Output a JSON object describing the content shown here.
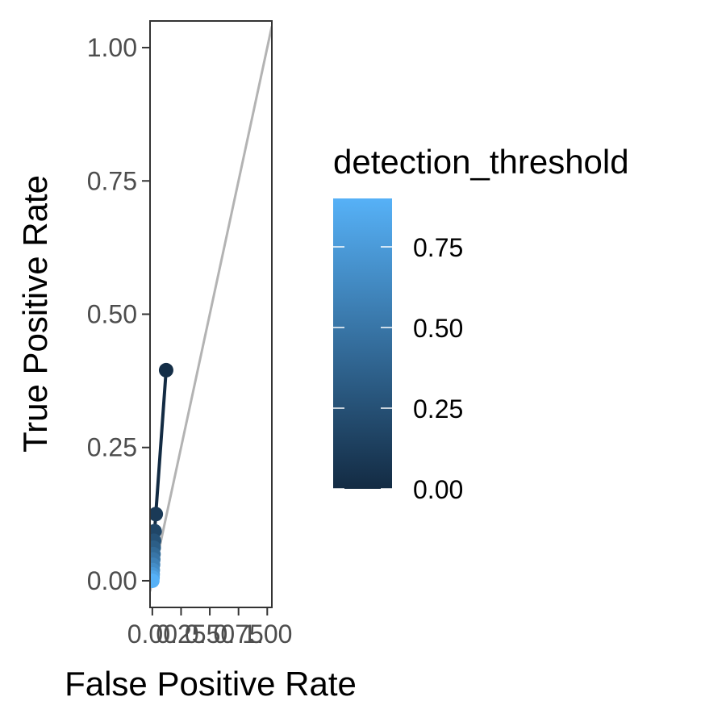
{
  "chart_data": {
    "type": "line",
    "xlabel": "False Positive Rate",
    "ylabel": "True Positive Rate",
    "xlim": [
      -0.02,
      1.04
    ],
    "ylim": [
      -0.05,
      1.05
    ],
    "x_ticks": [
      "0.00",
      "0.25",
      "0.50",
      "0.75",
      "1.00"
    ],
    "y_ticks": [
      "0.00",
      "0.25",
      "0.50",
      "0.75",
      "1.00"
    ],
    "x_tick_values": [
      0,
      0.25,
      0.5,
      0.75,
      1.0
    ],
    "y_tick_values": [
      0,
      0.25,
      0.5,
      0.75,
      1.0
    ],
    "reference_line": {
      "x": [
        -0.02,
        1.04
      ],
      "y": [
        -0.02,
        1.04
      ],
      "color": "#b3b3b3"
    },
    "series": [
      {
        "x": [
          0.12,
          0.03,
          0.02,
          0.015,
          0.012,
          0.01,
          0.008,
          0.006,
          0.004,
          0.003,
          0.002,
          0.0
        ],
        "y": [
          0.395,
          0.125,
          0.093,
          0.075,
          0.062,
          0.05,
          0.04,
          0.03,
          0.02,
          0.012,
          0.006,
          0.0
        ],
        "threshold": [
          0.02,
          0.1,
          0.18,
          0.26,
          0.34,
          0.42,
          0.5,
          0.58,
          0.66,
          0.74,
          0.82,
          0.9
        ]
      }
    ],
    "grid": false,
    "legend": {
      "title": "detection_threshold",
      "type": "colorbar",
      "position": "right",
      "range": [
        0,
        0.9
      ],
      "tick_values": [
        0,
        0.25,
        0.5,
        0.75
      ],
      "tick_labels": [
        "0.00",
        "0.25",
        "0.50",
        "0.75"
      ],
      "color_low": "#132b43",
      "color_high": "#56b1f7"
    },
    "colors": {
      "line": "#132b43",
      "panel_border": "#333333",
      "tick": "#333333"
    }
  }
}
